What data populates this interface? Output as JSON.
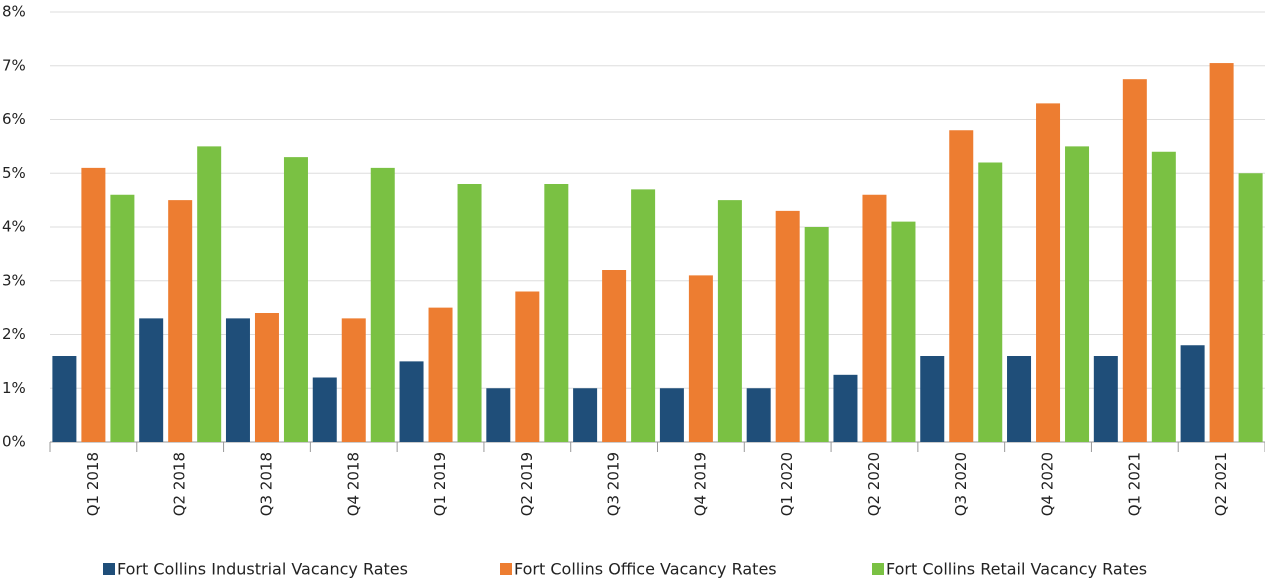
{
  "chart_data": {
    "type": "bar",
    "categories": [
      "Q1 2018",
      "Q2 2018",
      "Q3 2018",
      "Q4 2018",
      "Q1 2019",
      "Q2 2019",
      "Q3 2019",
      "Q4 2019",
      "Q1 2020",
      "Q2 2020",
      "Q3 2020",
      "Q4 2020",
      "Q1 2021",
      "Q2 2021"
    ],
    "series": [
      {
        "name": "Fort Collins Industrial Vacancy Rates",
        "color": "#1f4e79",
        "values": [
          1.6,
          2.3,
          2.3,
          1.2,
          1.5,
          1.0,
          1.0,
          1.0,
          1.0,
          1.25,
          1.6,
          1.6,
          1.6,
          1.8
        ]
      },
      {
        "name": "Fort Collins Office Vacancy Rates",
        "color": "#ed7d31",
        "values": [
          5.1,
          4.5,
          2.4,
          2.3,
          2.5,
          2.8,
          3.2,
          3.1,
          4.3,
          4.6,
          5.8,
          6.3,
          6.75,
          7.05
        ]
      },
      {
        "name": "Fort Collins Retail Vacancy Rates",
        "color": "#7ac143",
        "values": [
          4.6,
          5.5,
          5.3,
          5.1,
          4.8,
          4.8,
          4.7,
          4.5,
          4.0,
          4.1,
          5.2,
          5.5,
          5.4,
          5.0
        ]
      }
    ],
    "ylim": [
      0,
      8
    ],
    "yticks": [
      {
        "value": 0,
        "label": "0%"
      },
      {
        "value": 1,
        "label": "1%"
      },
      {
        "value": 2,
        "label": "2%"
      },
      {
        "value": 3,
        "label": "3%"
      },
      {
        "value": 4,
        "label": "4%"
      },
      {
        "value": 5,
        "label": "5%"
      },
      {
        "value": 6,
        "label": "6%"
      },
      {
        "value": 7,
        "label": "7%"
      },
      {
        "value": 8,
        "label": "8%"
      }
    ],
    "grid": true,
    "legend": "bottom"
  }
}
